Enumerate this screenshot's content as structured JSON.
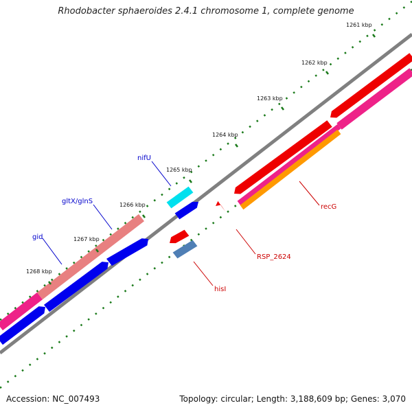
{
  "title": "Rhodobacter sphaeroides 2.4.1 chromosome 1, complete genome",
  "footer": {
    "accession": "Accession: NC_007493",
    "summary": "Topology: circular; Length: 3,188,609 bp; Genes: 3,070"
  },
  "ticks": [
    "1261 kbp",
    "1262 kbp",
    "1263 kbp",
    "1264 kbp",
    "1265 kbp",
    "1266 kbp",
    "1267 kbp",
    "1268 kbp"
  ],
  "gene_labels": [
    {
      "id": "nifU",
      "text": "nifU",
      "color": "#0000cc"
    },
    {
      "id": "gltX-glnS",
      "text": "gltX/glnS",
      "color": "#0000cc"
    },
    {
      "id": "gid",
      "text": "gid",
      "color": "#0000cc"
    },
    {
      "id": "recG",
      "text": "recG",
      "color": "#cc0000"
    },
    {
      "id": "RSP_2624",
      "text": "RSP_2624",
      "color": "#cc0000"
    },
    {
      "id": "hisI",
      "text": "hisI",
      "color": "#cc0000"
    }
  ],
  "colors": {
    "backbone": "#808080",
    "red": "#ee0000",
    "pink": "#ee2288",
    "salmon": "#e88080",
    "blue": "#0000ee",
    "cyan": "#00e0ee",
    "steelblue": "#4f7fb5",
    "orange": "#ff9900",
    "gc": "#1a7a1a"
  }
}
